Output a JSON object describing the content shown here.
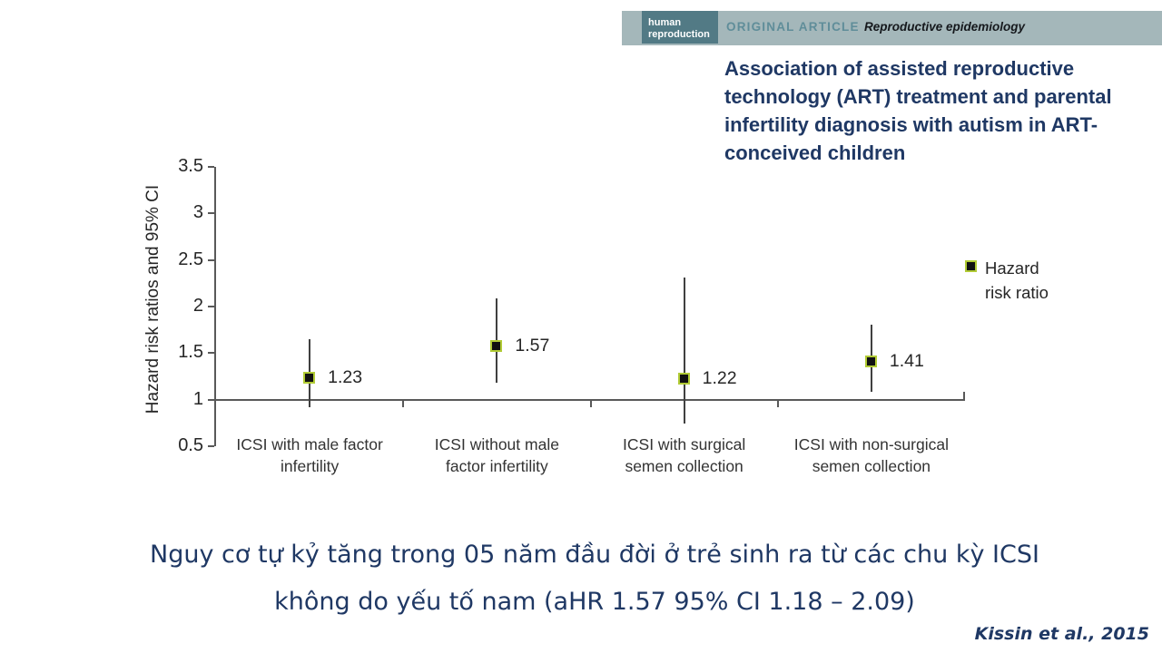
{
  "header": {
    "logo": {
      "line1": "human",
      "line2": "reproduction"
    },
    "article_type": "ORIGINAL ARTICLE",
    "article_category": "Reproductive epidemiology",
    "colors": {
      "banner_bg": "#a4b7ba",
      "logo_bg": "#527a85",
      "article_type_color": "#5f8d99"
    }
  },
  "title": "Association of assisted reproductive technology (ART) treatment and parental infertility diagnosis with autism in ART-conceived children",
  "chart_data": {
    "type": "scatter",
    "title": "",
    "xlabel": "",
    "ylabel": "Hazard risk ratios and 95% CI",
    "ylim": [
      0.5,
      3.5
    ],
    "y_ticks": [
      3.5,
      3,
      2.5,
      2,
      1.5,
      1,
      0.5
    ],
    "y_tick_labels": [
      "3.5",
      "3",
      "2.5",
      "2",
      "1.5",
      "1",
      "0.5"
    ],
    "baseline": 1,
    "grid": false,
    "legend": {
      "position": "right",
      "label_lines": [
        "Hazard",
        "risk ratio"
      ]
    },
    "categories": [
      "ICSI with male factor infertility",
      "ICSI without male factor infertility",
      "ICSI with surgical semen collection",
      "ICSI with non-surgical semen collection"
    ],
    "category_label_lines": [
      [
        "ICSI with male factor",
        "infertility"
      ],
      [
        "ICSI without male",
        "factor infertility"
      ],
      [
        "ICSI with surgical",
        "semen collection"
      ],
      [
        "ICSI with non-surgical",
        "semen collection"
      ]
    ],
    "points": [
      {
        "value": 1.23,
        "label": "1.23",
        "ci_low": 0.92,
        "ci_high": 1.65
      },
      {
        "value": 1.57,
        "label": "1.57",
        "ci_low": 1.18,
        "ci_high": 2.09
      },
      {
        "value": 1.22,
        "label": "1.22",
        "ci_low": 0.74,
        "ci_high": 2.31
      },
      {
        "value": 1.41,
        "label": "1.41",
        "ci_low": 1.08,
        "ci_high": 1.81
      }
    ],
    "marker": {
      "shape": "square",
      "fill": "#111111",
      "border": "#b1cb35"
    }
  },
  "caption": {
    "line1": "Nguy cơ tự kỷ tăng trong 05 năm đầu đời ở trẻ sinh ra từ các chu kỳ ICSI",
    "line2": "không do yếu tố nam (aHR 1.57 95% CI 1.18 – 2.09)"
  },
  "citation": "Kissin et al., 2015",
  "colors": {
    "navy": "#1f3864",
    "axis_line": "#595959",
    "error_bar": "#404040"
  }
}
